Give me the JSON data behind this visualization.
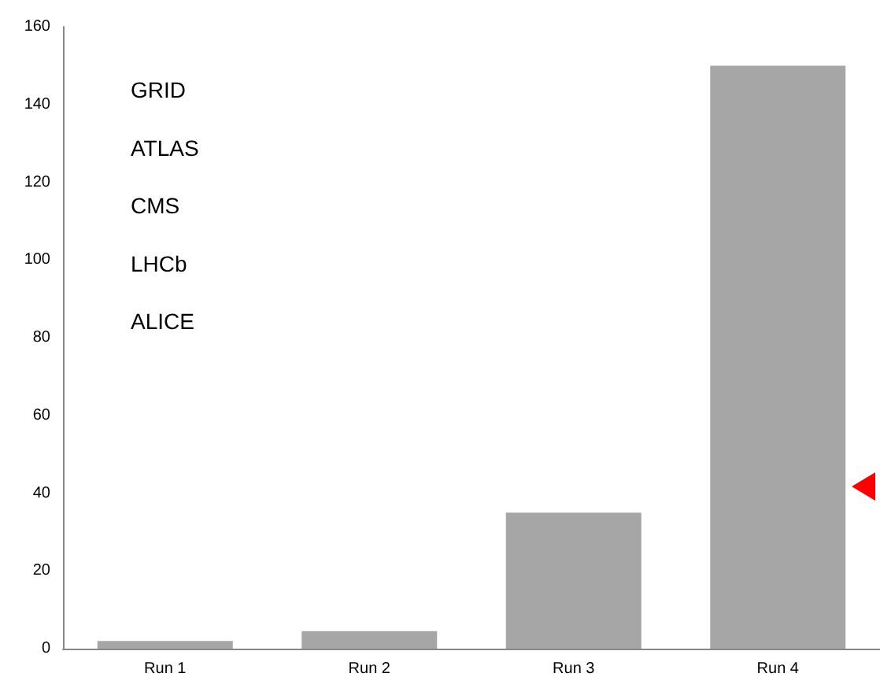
{
  "chart_data": {
    "type": "bar",
    "categories": [
      "Run 1",
      "Run 2",
      "Run 3",
      "Run 4"
    ],
    "values": [
      2,
      4.5,
      35,
      150
    ],
    "color": "#a6a6a6",
    "ylim": [
      0,
      160
    ],
    "yticks": [
      0,
      20,
      40,
      60,
      80,
      100,
      120,
      140,
      160
    ],
    "grid": false,
    "annotations": [
      "GRID",
      "ATLAS",
      "CMS",
      "LHCb",
      "ALICE"
    ]
  }
}
